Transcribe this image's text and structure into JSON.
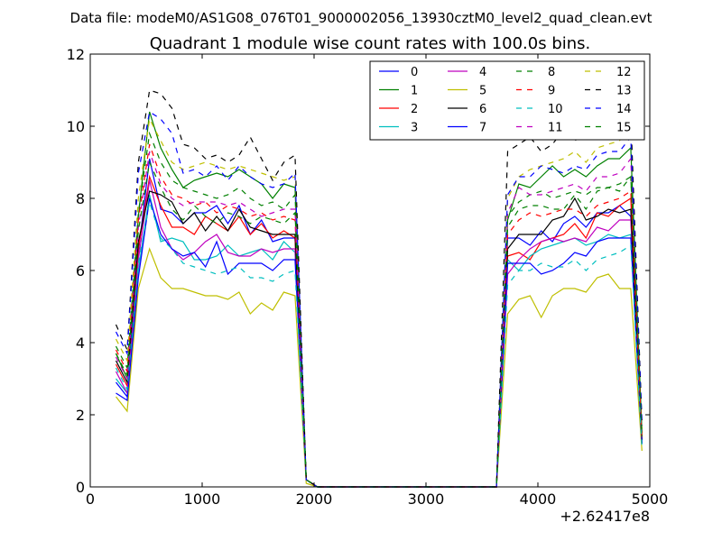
{
  "chart_data": {
    "type": "line",
    "suptitle": "Data file: modeM0/AS1G08_076T01_9000002056_13930cztM0_level2_quad_clean.evt",
    "title": "Quadrant 1 module wise count rates with 100.0s bins.",
    "xlabel": "",
    "ylabel": "",
    "x_offset_label": "+2.62417e8",
    "xlim": [
      0,
      5000
    ],
    "ylim": [
      0,
      12
    ],
    "xticks": [
      0,
      1000,
      2000,
      3000,
      4000,
      5000
    ],
    "yticks": [
      0,
      2,
      4,
      6,
      8,
      10,
      12
    ],
    "x": [
      230,
      330,
      430,
      530,
      630,
      730,
      830,
      930,
      1030,
      1130,
      1230,
      1330,
      1430,
      1530,
      1630,
      1730,
      1830,
      1930,
      2030,
      2130,
      3630,
      3730,
      3830,
      3930,
      4030,
      4130,
      4230,
      4330,
      4430,
      4530,
      4630,
      4730,
      4830,
      4930
    ],
    "legend_position": "top-right",
    "series": [
      {
        "name": "0",
        "color": "#0000ff",
        "style": "solid",
        "values": [
          2.9,
          2.5,
          6.5,
          9.1,
          7.7,
          7.6,
          7.3,
          7.6,
          7.6,
          7.8,
          7.3,
          7.8,
          7.0,
          7.4,
          6.8,
          6.9,
          6.9,
          0.2,
          0,
          0,
          0,
          6.9,
          6.9,
          6.7,
          7.1,
          6.8,
          7.3,
          7.5,
          7.2,
          7.6,
          7.6,
          7.8,
          7.5,
          1.2
        ]
      },
      {
        "name": "1",
        "color": "#008000",
        "style": "solid",
        "values": [
          3.7,
          3.0,
          7.5,
          10.4,
          9.4,
          8.8,
          8.3,
          8.5,
          8.6,
          8.7,
          8.6,
          8.8,
          8.6,
          8.4,
          8.0,
          8.4,
          8.3,
          0.2,
          0,
          0,
          0,
          7.4,
          8.4,
          8.3,
          8.6,
          8.9,
          8.6,
          8.8,
          8.6,
          8.9,
          9.1,
          9.1,
          9.4,
          1.5
        ]
      },
      {
        "name": "2",
        "color": "#ff0000",
        "style": "solid",
        "values": [
          3.4,
          2.8,
          6.6,
          8.6,
          7.8,
          7.2,
          7.2,
          7.0,
          7.5,
          7.3,
          7.1,
          7.5,
          7.0,
          7.3,
          6.9,
          7.1,
          6.9,
          0.2,
          0,
          0,
          0,
          6.4,
          6.5,
          6.3,
          6.8,
          6.9,
          7.0,
          7.3,
          6.9,
          7.6,
          7.5,
          7.8,
          8.0,
          1.3
        ]
      },
      {
        "name": "3",
        "color": "#00bfbf",
        "style": "solid",
        "values": [
          3.0,
          2.6,
          6.0,
          8.1,
          6.8,
          6.9,
          6.8,
          6.3,
          6.3,
          6.4,
          6.7,
          6.4,
          6.5,
          6.6,
          6.3,
          6.8,
          6.5,
          0.2,
          0,
          0,
          0,
          6.3,
          6.0,
          6.4,
          6.6,
          6.7,
          6.8,
          6.9,
          6.7,
          6.8,
          7.0,
          6.9,
          7.0,
          1.2
        ]
      },
      {
        "name": "4",
        "color": "#bf00bf",
        "style": "solid",
        "values": [
          3.2,
          2.6,
          6.3,
          8.5,
          7.2,
          6.6,
          6.3,
          6.5,
          6.8,
          7.0,
          6.5,
          6.4,
          6.4,
          6.6,
          6.5,
          6.6,
          6.6,
          0.2,
          0,
          0,
          0,
          5.9,
          6.3,
          6.6,
          6.8,
          6.9,
          6.8,
          6.9,
          6.8,
          7.2,
          7.1,
          7.4,
          7.4,
          1.2
        ]
      },
      {
        "name": "5",
        "color": "#bfbf00",
        "style": "solid",
        "values": [
          2.5,
          2.1,
          5.5,
          6.6,
          5.8,
          5.5,
          5.5,
          5.4,
          5.3,
          5.3,
          5.2,
          5.4,
          4.8,
          5.1,
          4.9,
          5.4,
          5.3,
          0.1,
          0,
          0,
          0,
          4.8,
          5.2,
          5.3,
          4.7,
          5.3,
          5.5,
          5.5,
          5.4,
          5.8,
          5.9,
          5.5,
          5.5,
          1.0
        ]
      },
      {
        "name": "6",
        "color": "#000000",
        "style": "solid",
        "values": [
          3.5,
          2.9,
          6.8,
          8.2,
          8.1,
          7.9,
          7.3,
          7.6,
          7.1,
          7.5,
          7.1,
          7.7,
          7.2,
          7.1,
          7.0,
          7.0,
          7.0,
          0.2,
          0,
          0,
          0,
          6.6,
          7.0,
          7.0,
          7.0,
          7.4,
          7.5,
          8.0,
          7.4,
          7.5,
          7.7,
          7.6,
          7.7,
          1.3
        ]
      },
      {
        "name": "7",
        "color": "#0000ff",
        "style": "solid",
        "values": [
          2.6,
          2.4,
          5.8,
          8.0,
          7.0,
          6.6,
          6.4,
          6.5,
          6.1,
          6.8,
          5.9,
          6.2,
          6.2,
          6.2,
          6.0,
          6.3,
          6.3,
          0.2,
          0,
          0,
          0,
          6.2,
          6.2,
          6.2,
          5.9,
          6.0,
          6.2,
          6.5,
          6.4,
          6.8,
          6.9,
          6.9,
          6.9,
          1.2
        ]
      },
      {
        "name": "8",
        "color": "#008000",
        "style": "dashed",
        "values": [
          3.9,
          3.3,
          7.6,
          9.8,
          9.0,
          8.5,
          8.3,
          8.2,
          8.1,
          8.0,
          8.1,
          8.3,
          8.0,
          7.8,
          7.9,
          7.7,
          8.1,
          0.2,
          0,
          0,
          0,
          7.5,
          7.9,
          8.1,
          8.2,
          8.0,
          8.1,
          8.2,
          8.1,
          8.3,
          8.3,
          8.4,
          8.6,
          1.4
        ]
      },
      {
        "name": "9",
        "color": "#ff0000",
        "style": "dashed",
        "values": [
          3.8,
          3.2,
          7.4,
          9.5,
          8.6,
          8.1,
          8.0,
          7.8,
          7.9,
          7.6,
          7.8,
          7.7,
          7.5,
          7.6,
          7.4,
          7.5,
          7.4,
          0.2,
          0,
          0,
          0,
          7.0,
          7.4,
          7.6,
          7.5,
          7.6,
          7.7,
          7.7,
          7.5,
          7.8,
          7.9,
          8.0,
          8.2,
          1.3
        ]
      },
      {
        "name": "10",
        "color": "#00bfbf",
        "style": "dashed",
        "values": [
          3.3,
          2.7,
          6.2,
          7.9,
          6.9,
          6.6,
          6.2,
          6.1,
          6.0,
          5.9,
          6.0,
          6.1,
          5.8,
          5.8,
          5.7,
          5.9,
          6.0,
          0.2,
          0,
          0,
          0,
          5.6,
          6.0,
          6.0,
          6.2,
          6.1,
          6.1,
          6.3,
          6.0,
          6.3,
          6.4,
          6.5,
          6.7,
          1.1
        ]
      },
      {
        "name": "11",
        "color": "#bf00bf",
        "style": "dashed",
        "values": [
          3.6,
          3.0,
          7.2,
          9.3,
          8.4,
          8.0,
          7.8,
          7.9,
          7.9,
          7.9,
          7.8,
          7.9,
          7.7,
          7.5,
          7.6,
          7.7,
          7.7,
          0.2,
          0,
          0,
          0,
          7.6,
          8.3,
          8.1,
          8.1,
          8.2,
          8.3,
          8.4,
          8.2,
          8.6,
          8.6,
          8.7,
          9.1,
          1.4
        ]
      },
      {
        "name": "12",
        "color": "#bfbf00",
        "style": "dashed",
        "values": [
          4.1,
          3.5,
          8.0,
          10.2,
          9.6,
          9.0,
          8.8,
          8.9,
          9.0,
          8.9,
          8.8,
          8.9,
          8.8,
          8.7,
          8.6,
          8.5,
          8.6,
          0.2,
          0,
          0,
          0,
          8.0,
          8.6,
          8.8,
          8.9,
          9.0,
          9.1,
          9.3,
          9.0,
          9.4,
          9.5,
          9.6,
          10.1,
          1.6
        ]
      },
      {
        "name": "13",
        "color": "#000000",
        "style": "dashed",
        "values": [
          4.5,
          3.8,
          9.0,
          11.0,
          10.9,
          10.5,
          9.5,
          9.4,
          9.1,
          9.2,
          9.0,
          9.2,
          9.7,
          9.1,
          8.5,
          9.0,
          9.2,
          0.2,
          0,
          0,
          0,
          9.3,
          9.5,
          9.7,
          9.3,
          9.5,
          9.9,
          9.6,
          9.8,
          10.0,
          10.2,
          10.0,
          10.3,
          1.8
        ]
      },
      {
        "name": "14",
        "color": "#0000ff",
        "style": "dashed",
        "values": [
          4.3,
          3.7,
          8.7,
          10.4,
          10.2,
          9.8,
          8.7,
          8.8,
          8.6,
          8.9,
          8.5,
          8.9,
          8.6,
          8.4,
          8.3,
          8.4,
          8.7,
          0.2,
          0,
          0,
          0,
          8.1,
          8.6,
          8.6,
          8.9,
          8.8,
          8.7,
          8.9,
          8.8,
          9.2,
          9.3,
          9.3,
          9.7,
          1.7
        ]
      },
      {
        "name": "15",
        "color": "#008000",
        "style": "dashed",
        "values": [
          3.7,
          3.1,
          7.1,
          9.0,
          8.3,
          7.7,
          7.4,
          7.8,
          7.5,
          7.3,
          7.6,
          7.5,
          7.3,
          7.5,
          7.4,
          7.3,
          7.6,
          0.2,
          0,
          0,
          0,
          7.2,
          7.7,
          7.8,
          7.8,
          7.7,
          7.7,
          8.1,
          7.7,
          8.2,
          8.3,
          8.2,
          8.6,
          1.4
        ]
      }
    ]
  }
}
